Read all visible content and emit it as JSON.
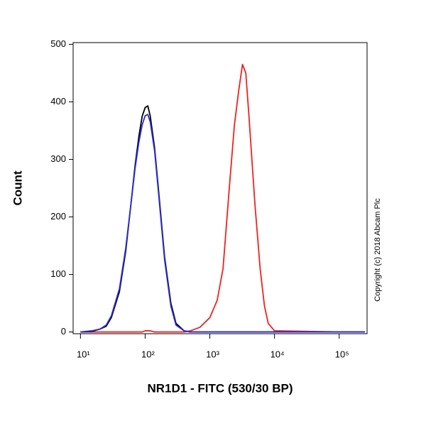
{
  "chart_data": {
    "type": "line",
    "x_label": "NR1D1 - FITC (530/30 BP)",
    "y_label": "Count",
    "annotation": "Copyright (c) 2018 Abcam Plc",
    "x": [
      10,
      15,
      20,
      25,
      30,
      40,
      50,
      60,
      70,
      80,
      90,
      100,
      110,
      120,
      140,
      160,
      200,
      250,
      300,
      400,
      500,
      700,
      1000,
      1300,
      1600,
      2000,
      2400,
      2800,
      3200,
      3600,
      4000,
      5000,
      6000,
      7000,
      8000,
      10000,
      100000,
      250000
    ],
    "series": [
      {
        "color": "#000000",
        "values": [
          0,
          1,
          5,
          10,
          25,
          70,
          140,
          220,
          290,
          340,
          375,
          390,
          393,
          375,
          320,
          250,
          130,
          50,
          15,
          2,
          0,
          0,
          0,
          0,
          0,
          0,
          0,
          0,
          0,
          0,
          0,
          0,
          0,
          0,
          0,
          0,
          0,
          0
        ]
      },
      {
        "color": "#2b2bd6",
        "values": [
          0,
          2,
          5,
          12,
          28,
          75,
          145,
          220,
          285,
          330,
          360,
          376,
          378,
          365,
          315,
          245,
          125,
          45,
          12,
          2,
          0,
          0,
          0,
          0,
          0,
          0,
          0,
          0,
          0,
          0,
          0,
          0,
          0,
          0,
          0,
          0,
          0,
          0
        ]
      },
      {
        "color": "#ee2222",
        "values": [
          0,
          0,
          0,
          0,
          0,
          0,
          0,
          0,
          0,
          0,
          0,
          2,
          2,
          2,
          0,
          0,
          0,
          0,
          0,
          0,
          2,
          8,
          25,
          55,
          110,
          250,
          360,
          420,
          465,
          450,
          380,
          220,
          110,
          45,
          15,
          2,
          0,
          0
        ]
      }
    ],
    "xscale": "log",
    "xlim": [
      7.7,
      270000
    ],
    "xticks": [
      {
        "value": 10,
        "label": "10¹"
      },
      {
        "value": 100,
        "label": "10²"
      },
      {
        "value": 1000,
        "label": "10³"
      },
      {
        "value": 10000,
        "label": "10⁴"
      },
      {
        "value": 100000,
        "label": "10⁵"
      }
    ],
    "ylim": [
      -3,
      503
    ],
    "yticks": [
      0,
      100,
      200,
      300,
      400,
      500
    ]
  }
}
